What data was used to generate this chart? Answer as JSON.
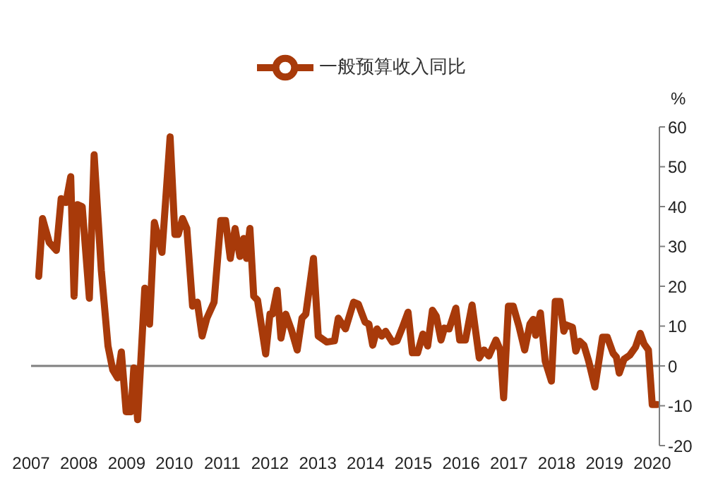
{
  "chart_data": {
    "type": "line",
    "ylabel": "%",
    "legend": "top",
    "series": [
      {
        "name": "一般预算收入同比",
        "color": "#a83a0a",
        "x": [
          2007.16,
          2007.24,
          2007.38,
          2007.53,
          2007.63,
          2007.73,
          2007.83,
          2007.9,
          2007.97,
          2008.07,
          2008.22,
          2008.32,
          2008.47,
          2008.61,
          2008.71,
          2008.81,
          2008.89,
          2008.99,
          2009.09,
          2009.15,
          2009.23,
          2009.38,
          2009.48,
          2009.58,
          2009.74,
          2009.91,
          2010.01,
          2010.08,
          2010.17,
          2010.26,
          2010.38,
          2010.48,
          2010.58,
          2010.68,
          2010.83,
          2010.97,
          2011.07,
          2011.17,
          2011.27,
          2011.37,
          2011.45,
          2011.51,
          2011.58,
          2011.66,
          2011.74,
          2011.91,
          2012.0,
          2012.05,
          2012.15,
          2012.23,
          2012.33,
          2012.45,
          2012.57,
          2012.67,
          2012.75,
          2012.91,
          2013.01,
          2013.19,
          2013.35,
          2013.43,
          2013.58,
          2013.75,
          2013.85,
          2013.99,
          2014.07,
          2014.15,
          2014.24,
          2014.34,
          2014.42,
          2014.56,
          2014.66,
          2014.76,
          2014.89,
          2014.98,
          2015.09,
          2015.2,
          2015.3,
          2015.4,
          2015.48,
          2015.58,
          2015.65,
          2015.75,
          2015.89,
          2015.97,
          2016.09,
          2016.23,
          2016.38,
          2016.48,
          2016.58,
          2016.73,
          2016.82,
          2016.89,
          2016.99,
          2017.09,
          2017.21,
          2017.33,
          2017.44,
          2017.51,
          2017.56,
          2017.66,
          2017.76,
          2017.89,
          2017.97,
          2018.07,
          2018.15,
          2018.2,
          2018.33,
          2018.4,
          2018.48,
          2018.57,
          2018.67,
          2018.8,
          2018.96,
          2019.06,
          2019.18,
          2019.25,
          2019.31,
          2019.41,
          2019.53,
          2019.65,
          2019.75,
          2019.83,
          2019.92,
          2020.0,
          2020.1
        ],
        "values": [
          22.5,
          37,
          31,
          29,
          42,
          41,
          47.5,
          17.5,
          40.5,
          40,
          17,
          53,
          24,
          5,
          -1,
          -3,
          3.5,
          -11.5,
          -11.5,
          -0.5,
          -13.5,
          19.5,
          10.5,
          36,
          28.5,
          57.5,
          33,
          33,
          37,
          34.5,
          15,
          16,
          7.5,
          12,
          16,
          36.5,
          36.5,
          27,
          34.5,
          27.5,
          32,
          27,
          34.5,
          17.5,
          16.5,
          3,
          13,
          13,
          19,
          7,
          13,
          9,
          4,
          12,
          13,
          27,
          7.5,
          6,
          6.3,
          12,
          9.3,
          16,
          15.5,
          11,
          10.5,
          5.2,
          9.3,
          7.5,
          8.7,
          6,
          6.3,
          9.3,
          13.5,
          3.3,
          3.3,
          8,
          5,
          14,
          12.5,
          6.5,
          9.5,
          9.3,
          14.5,
          6.5,
          6.5,
          15.3,
          2,
          4,
          2.5,
          6.5,
          4,
          -8,
          15,
          15,
          10,
          4,
          10.5,
          11.7,
          7.7,
          13.3,
          1.2,
          -3.8,
          16.2,
          16.2,
          8.7,
          10.3,
          9.7,
          3.7,
          6.2,
          5.2,
          1.2,
          -5.3,
          7.2,
          7.2,
          3.2,
          2.2,
          -1.8,
          1.7,
          2.7,
          4.7,
          8.2,
          5.5,
          4,
          -9.7,
          -9.7
        ]
      }
    ],
    "xlim": [
      2007,
      2020.15
    ],
    "xticks": [
      2007,
      2008,
      2009,
      2010,
      2011,
      2012,
      2013,
      2014,
      2015,
      2016,
      2017,
      2018,
      2019,
      2020
    ],
    "ylim": [
      -20,
      60
    ],
    "yticks": [
      -20,
      -10,
      0,
      10,
      20,
      30,
      40,
      50,
      60
    ],
    "ref_lines": [
      {
        "axis": "y",
        "value": 0,
        "color": "#808080"
      }
    ],
    "grid": false,
    "marker": "none",
    "line_style": "solid"
  }
}
